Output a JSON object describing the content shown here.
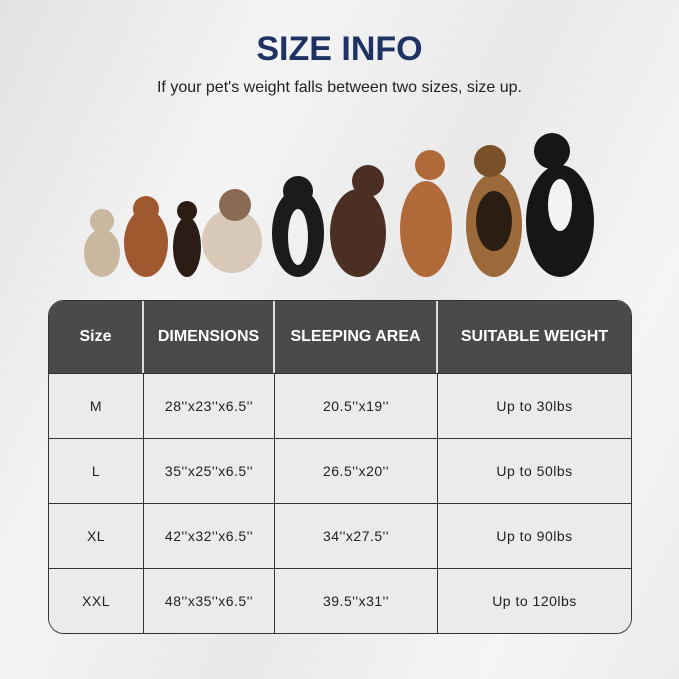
{
  "title": "SIZE INFO",
  "subtitle": "If your pet's weight falls between two sizes, size up.",
  "table": {
    "headers": [
      "Size",
      "DIMENSIONS",
      "SLEEPING AREA",
      "SUITABLE WEIGHT"
    ],
    "rows": [
      [
        "M",
        "28''x23''x6.5''",
        "20.5''x19''",
        "Up to 30lbs"
      ],
      [
        "L",
        "35''x25''x6.5''",
        "26.5''x20''",
        "Up to 50lbs"
      ],
      [
        "XL",
        "42''x32''x6.5''",
        "34''x27.5''",
        "Up to 90lbs"
      ],
      [
        "XXL",
        "48''x35''x6.5''",
        "39.5''x31''",
        "Up to 120lbs"
      ]
    ]
  },
  "colors": {
    "title": "#1e3263",
    "header_bg": "#4a4a4a",
    "row_bg": "#ebebeb"
  }
}
